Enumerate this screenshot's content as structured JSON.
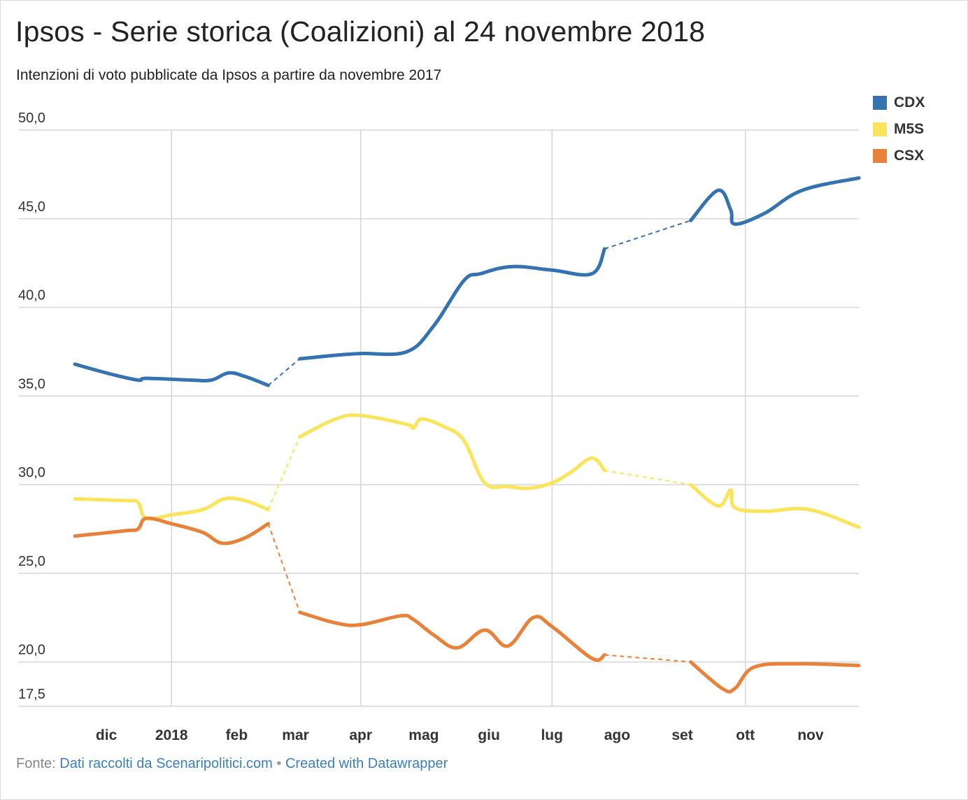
{
  "title": "Ipsos - Serie storica (Coalizioni) al 24 novembre 2018",
  "subtitle": "Intenzioni di voto pubblicate da Ipsos a partire da novembre 2017",
  "footer": {
    "prefix": "Fonte:",
    "source_link": "Dati raccolti da Scenaripolitici.com",
    "separator": "•",
    "created_link": "Created with Datawrapper"
  },
  "chart_data": {
    "type": "line",
    "title": "Ipsos - Serie storica (Coalizioni) al 24 novembre 2018",
    "subtitle": "Intenzioni di voto pubblicate da Ipsos a partire da novembre 2017",
    "ylim": [
      17.5,
      50
    ],
    "y_ticks": [
      "50,0",
      "45,0",
      "40,0",
      "35,0",
      "30,0",
      "25,0",
      "20,0",
      "17,5"
    ],
    "y_tick_values": [
      50,
      45,
      40,
      35,
      30,
      25,
      20,
      17.5
    ],
    "x_ticks": [
      "dic",
      "2018",
      "feb",
      "mar",
      "apr",
      "mag",
      "giu",
      "lug",
      "ago",
      "set",
      "ott",
      "nov"
    ],
    "x_tick_dates": [
      "2017-12-01",
      "2018-01-01",
      "2018-02-01",
      "2018-03-01",
      "2018-04-01",
      "2018-05-01",
      "2018-06-01",
      "2018-07-01",
      "2018-08-01",
      "2018-09-01",
      "2018-10-01",
      "2018-11-01"
    ],
    "x_range": [
      "2017-11-16",
      "2018-11-24"
    ],
    "grid": true,
    "legend_position": "top-right",
    "series": [
      {
        "name": "CDX",
        "color": "#3572b0",
        "points": [
          [
            "2017-11-16",
            36.8
          ],
          [
            "2017-12-01",
            36.3
          ],
          [
            "2017-12-16",
            35.9
          ],
          [
            "2017-12-20",
            36.0
          ],
          [
            "2018-01-10",
            35.9
          ],
          [
            "2018-01-20",
            35.9
          ],
          [
            "2018-01-28",
            36.3
          ],
          [
            "2018-02-05",
            36.1
          ],
          [
            "2018-02-16",
            35.6
          ],
          [
            "2018-03-03",
            37.1
          ],
          [
            "2018-03-20",
            37.3
          ],
          [
            "2018-04-01",
            37.4
          ],
          [
            "2018-04-23",
            37.5
          ],
          [
            "2018-05-06",
            39.0
          ],
          [
            "2018-05-20",
            41.5
          ],
          [
            "2018-05-28",
            41.9
          ],
          [
            "2018-06-12",
            42.3
          ],
          [
            "2018-07-01",
            42.1
          ],
          [
            "2018-07-20",
            41.9
          ],
          [
            "2018-07-26",
            43.3
          ],
          [
            "2018-09-05",
            44.9
          ],
          [
            "2018-09-18",
            46.6
          ],
          [
            "2018-09-24",
            45.5
          ],
          [
            "2018-09-26",
            44.7
          ],
          [
            "2018-10-10",
            45.3
          ],
          [
            "2018-10-28",
            46.6
          ],
          [
            "2018-11-24",
            47.3
          ]
        ],
        "dashed_gaps": [
          [
            "2018-02-16",
            "2018-03-03"
          ],
          [
            "2018-07-26",
            "2018-09-05"
          ]
        ]
      },
      {
        "name": "M5S",
        "color": "#f9e45b",
        "points": [
          [
            "2017-11-16",
            29.2
          ],
          [
            "2017-12-10",
            29.1
          ],
          [
            "2017-12-16",
            29.0
          ],
          [
            "2017-12-20",
            28.1
          ],
          [
            "2018-01-01",
            28.3
          ],
          [
            "2018-01-16",
            28.6
          ],
          [
            "2018-01-26",
            29.2
          ],
          [
            "2018-02-05",
            29.1
          ],
          [
            "2018-02-16",
            28.6
          ],
          [
            "2018-03-03",
            32.7
          ],
          [
            "2018-03-20",
            33.7
          ],
          [
            "2018-04-01",
            33.9
          ],
          [
            "2018-04-23",
            33.4
          ],
          [
            "2018-04-26",
            33.2
          ],
          [
            "2018-04-30",
            33.7
          ],
          [
            "2018-05-10",
            33.3
          ],
          [
            "2018-05-20",
            32.5
          ],
          [
            "2018-05-30",
            30.1
          ],
          [
            "2018-06-10",
            29.9
          ],
          [
            "2018-06-20",
            29.8
          ],
          [
            "2018-07-01",
            30.1
          ],
          [
            "2018-07-10",
            30.7
          ],
          [
            "2018-07-20",
            31.5
          ],
          [
            "2018-07-26",
            30.8
          ],
          [
            "2018-09-05",
            30.0
          ],
          [
            "2018-09-18",
            28.8
          ],
          [
            "2018-09-24",
            29.7
          ],
          [
            "2018-09-26",
            28.7
          ],
          [
            "2018-10-10",
            28.5
          ],
          [
            "2018-10-31",
            28.6
          ],
          [
            "2018-11-24",
            27.6
          ]
        ],
        "dashed_gaps": [
          [
            "2018-02-16",
            "2018-03-03"
          ],
          [
            "2018-07-26",
            "2018-09-05"
          ]
        ]
      },
      {
        "name": "CSX",
        "color": "#e8813a",
        "points": [
          [
            "2017-11-16",
            27.1
          ],
          [
            "2017-12-10",
            27.4
          ],
          [
            "2017-12-16",
            27.5
          ],
          [
            "2017-12-20",
            28.1
          ],
          [
            "2018-01-01",
            27.8
          ],
          [
            "2018-01-16",
            27.3
          ],
          [
            "2018-01-25",
            26.7
          ],
          [
            "2018-02-05",
            27.0
          ],
          [
            "2018-02-16",
            27.8
          ],
          [
            "2018-03-03",
            22.8
          ],
          [
            "2018-03-20",
            22.2
          ],
          [
            "2018-04-01",
            22.1
          ],
          [
            "2018-04-20",
            22.6
          ],
          [
            "2018-04-26",
            22.4
          ],
          [
            "2018-05-06",
            21.5
          ],
          [
            "2018-05-17",
            20.8
          ],
          [
            "2018-05-30",
            21.8
          ],
          [
            "2018-06-10",
            20.9
          ],
          [
            "2018-06-22",
            22.5
          ],
          [
            "2018-07-01",
            22.0
          ],
          [
            "2018-07-20",
            20.2
          ],
          [
            "2018-07-26",
            20.4
          ],
          [
            "2018-09-05",
            20.0
          ],
          [
            "2018-09-20",
            18.5
          ],
          [
            "2018-09-26",
            18.5
          ],
          [
            "2018-10-05",
            19.7
          ],
          [
            "2018-10-25",
            19.9
          ],
          [
            "2018-11-24",
            19.8
          ]
        ],
        "dashed_gaps": [
          [
            "2018-02-16",
            "2018-03-03"
          ],
          [
            "2018-07-26",
            "2018-09-05"
          ]
        ]
      }
    ]
  }
}
